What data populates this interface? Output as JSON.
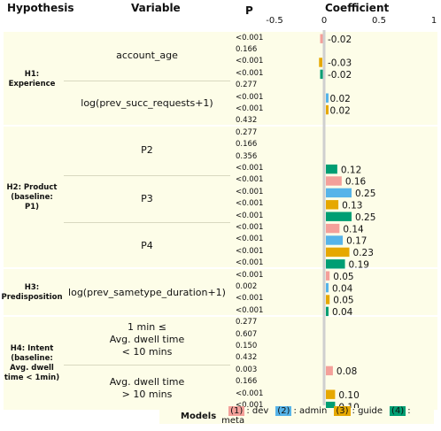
{
  "headers": {
    "hypothesis": "Hypothesis",
    "variable": "Variable",
    "p": "P",
    "coefficient": "Coefficient"
  },
  "axis_ticks": [
    "-0.5",
    "0",
    "0.5",
    "1"
  ],
  "legend": {
    "title": "Models",
    "items": [
      {
        "num": "(1)",
        "label": ": dev",
        "color": "#f4a09a"
      },
      {
        "num": "(2)",
        "label": ": admin",
        "color": "#56b4e9"
      },
      {
        "num": "(3)",
        "label": ": guide",
        "color": "#e6a800"
      },
      {
        "num": "(4)",
        "label": ": meta",
        "color": "#009e73"
      }
    ]
  },
  "hypotheses": [
    {
      "label": "H1:\nExperience"
    },
    {
      "label": "H2: Product\n(baseline: P1)"
    },
    {
      "label": "H3:\nPredisposition"
    },
    {
      "label": "H4: Intent\n(baseline:\nAvg. dwell\ntime < 1min)"
    }
  ],
  "variables": [
    {
      "label": "account_age"
    },
    {
      "label": "log(prev_succ_requests+1)"
    },
    {
      "label": "P2"
    },
    {
      "label": "P3"
    },
    {
      "label": "P4"
    },
    {
      "label": "log(prev_sametype_duration+1)"
    },
    {
      "label": "1 min ≤\nAvg. dwell time\n< 10 mins"
    },
    {
      "label": "Avg. dwell time\n> 10 mins"
    }
  ],
  "chart_data": {
    "type": "bar",
    "orientation": "horizontal",
    "xlim": [
      -0.5,
      1
    ],
    "xticks": [
      -0.5,
      0,
      0.5,
      1
    ],
    "series_names": [
      "dev",
      "admin",
      "guide",
      "meta"
    ],
    "rows": [
      {
        "var": 0,
        "model": 0,
        "p": "<0.001",
        "coef": -0.02,
        "label": "-0.02"
      },
      {
        "var": 0,
        "model": 1,
        "p": "0.166",
        "coef": null,
        "label": ""
      },
      {
        "var": 0,
        "model": 2,
        "p": "<0.001",
        "coef": -0.03,
        "label": "-0.03"
      },
      {
        "var": 0,
        "model": 3,
        "p": "<0.001",
        "coef": -0.02,
        "label": "-0.02"
      },
      {
        "var": 1,
        "model": 0,
        "p": "0.277",
        "coef": null,
        "label": ""
      },
      {
        "var": 1,
        "model": 1,
        "p": "<0.001",
        "coef": 0.02,
        "label": "0.02"
      },
      {
        "var": 1,
        "model": 2,
        "p": "<0.001",
        "coef": 0.02,
        "label": "0.02"
      },
      {
        "var": 1,
        "model": 3,
        "p": "0.432",
        "coef": null,
        "label": ""
      },
      {
        "var": 2,
        "model": 0,
        "p": "0.277",
        "coef": null,
        "label": ""
      },
      {
        "var": 2,
        "model": 1,
        "p": "0.166",
        "coef": null,
        "label": ""
      },
      {
        "var": 2,
        "model": 2,
        "p": "0.356",
        "coef": null,
        "label": ""
      },
      {
        "var": 2,
        "model": 3,
        "p": "<0.001",
        "coef": 0.12,
        "label": "0.12"
      },
      {
        "var": 3,
        "model": 0,
        "p": "<0.001",
        "coef": 0.16,
        "label": "0.16"
      },
      {
        "var": 3,
        "model": 1,
        "p": "<0.001",
        "coef": 0.25,
        "label": "0.25"
      },
      {
        "var": 3,
        "model": 2,
        "p": "<0.001",
        "coef": 0.13,
        "label": "0.13"
      },
      {
        "var": 3,
        "model": 3,
        "p": "<0.001",
        "coef": 0.25,
        "label": "0.25"
      },
      {
        "var": 4,
        "model": 0,
        "p": "<0.001",
        "coef": 0.14,
        "label": "0.14"
      },
      {
        "var": 4,
        "model": 1,
        "p": "<0.001",
        "coef": 0.17,
        "label": "0.17"
      },
      {
        "var": 4,
        "model": 2,
        "p": "<0.001",
        "coef": 0.23,
        "label": "0.23"
      },
      {
        "var": 4,
        "model": 3,
        "p": "<0.001",
        "coef": 0.19,
        "label": "0.19"
      },
      {
        "var": 5,
        "model": 0,
        "p": "<0.001",
        "coef": 0.05,
        "label": "0.05"
      },
      {
        "var": 5,
        "model": 1,
        "p": "0.002",
        "coef": 0.04,
        "label": "0.04"
      },
      {
        "var": 5,
        "model": 2,
        "p": "<0.001",
        "coef": 0.05,
        "label": "0.05"
      },
      {
        "var": 5,
        "model": 3,
        "p": "<0.001",
        "coef": 0.04,
        "label": "0.04"
      },
      {
        "var": 6,
        "model": 0,
        "p": "0.277",
        "coef": null,
        "label": ""
      },
      {
        "var": 6,
        "model": 1,
        "p": "0.607",
        "coef": null,
        "label": ""
      },
      {
        "var": 6,
        "model": 2,
        "p": "0.150",
        "coef": null,
        "label": ""
      },
      {
        "var": 6,
        "model": 3,
        "p": "0.432",
        "coef": null,
        "label": ""
      },
      {
        "var": 7,
        "model": 0,
        "p": "0.003",
        "coef": 0.08,
        "label": "0.08"
      },
      {
        "var": 7,
        "model": 1,
        "p": "0.166",
        "coef": null,
        "label": ""
      },
      {
        "var": 7,
        "model": 2,
        "p": "<0.001",
        "coef": 0.1,
        "label": "0.10"
      },
      {
        "var": 7,
        "model": 3,
        "p": "<0.001",
        "coef": 0.1,
        "label": "0.10"
      }
    ]
  }
}
